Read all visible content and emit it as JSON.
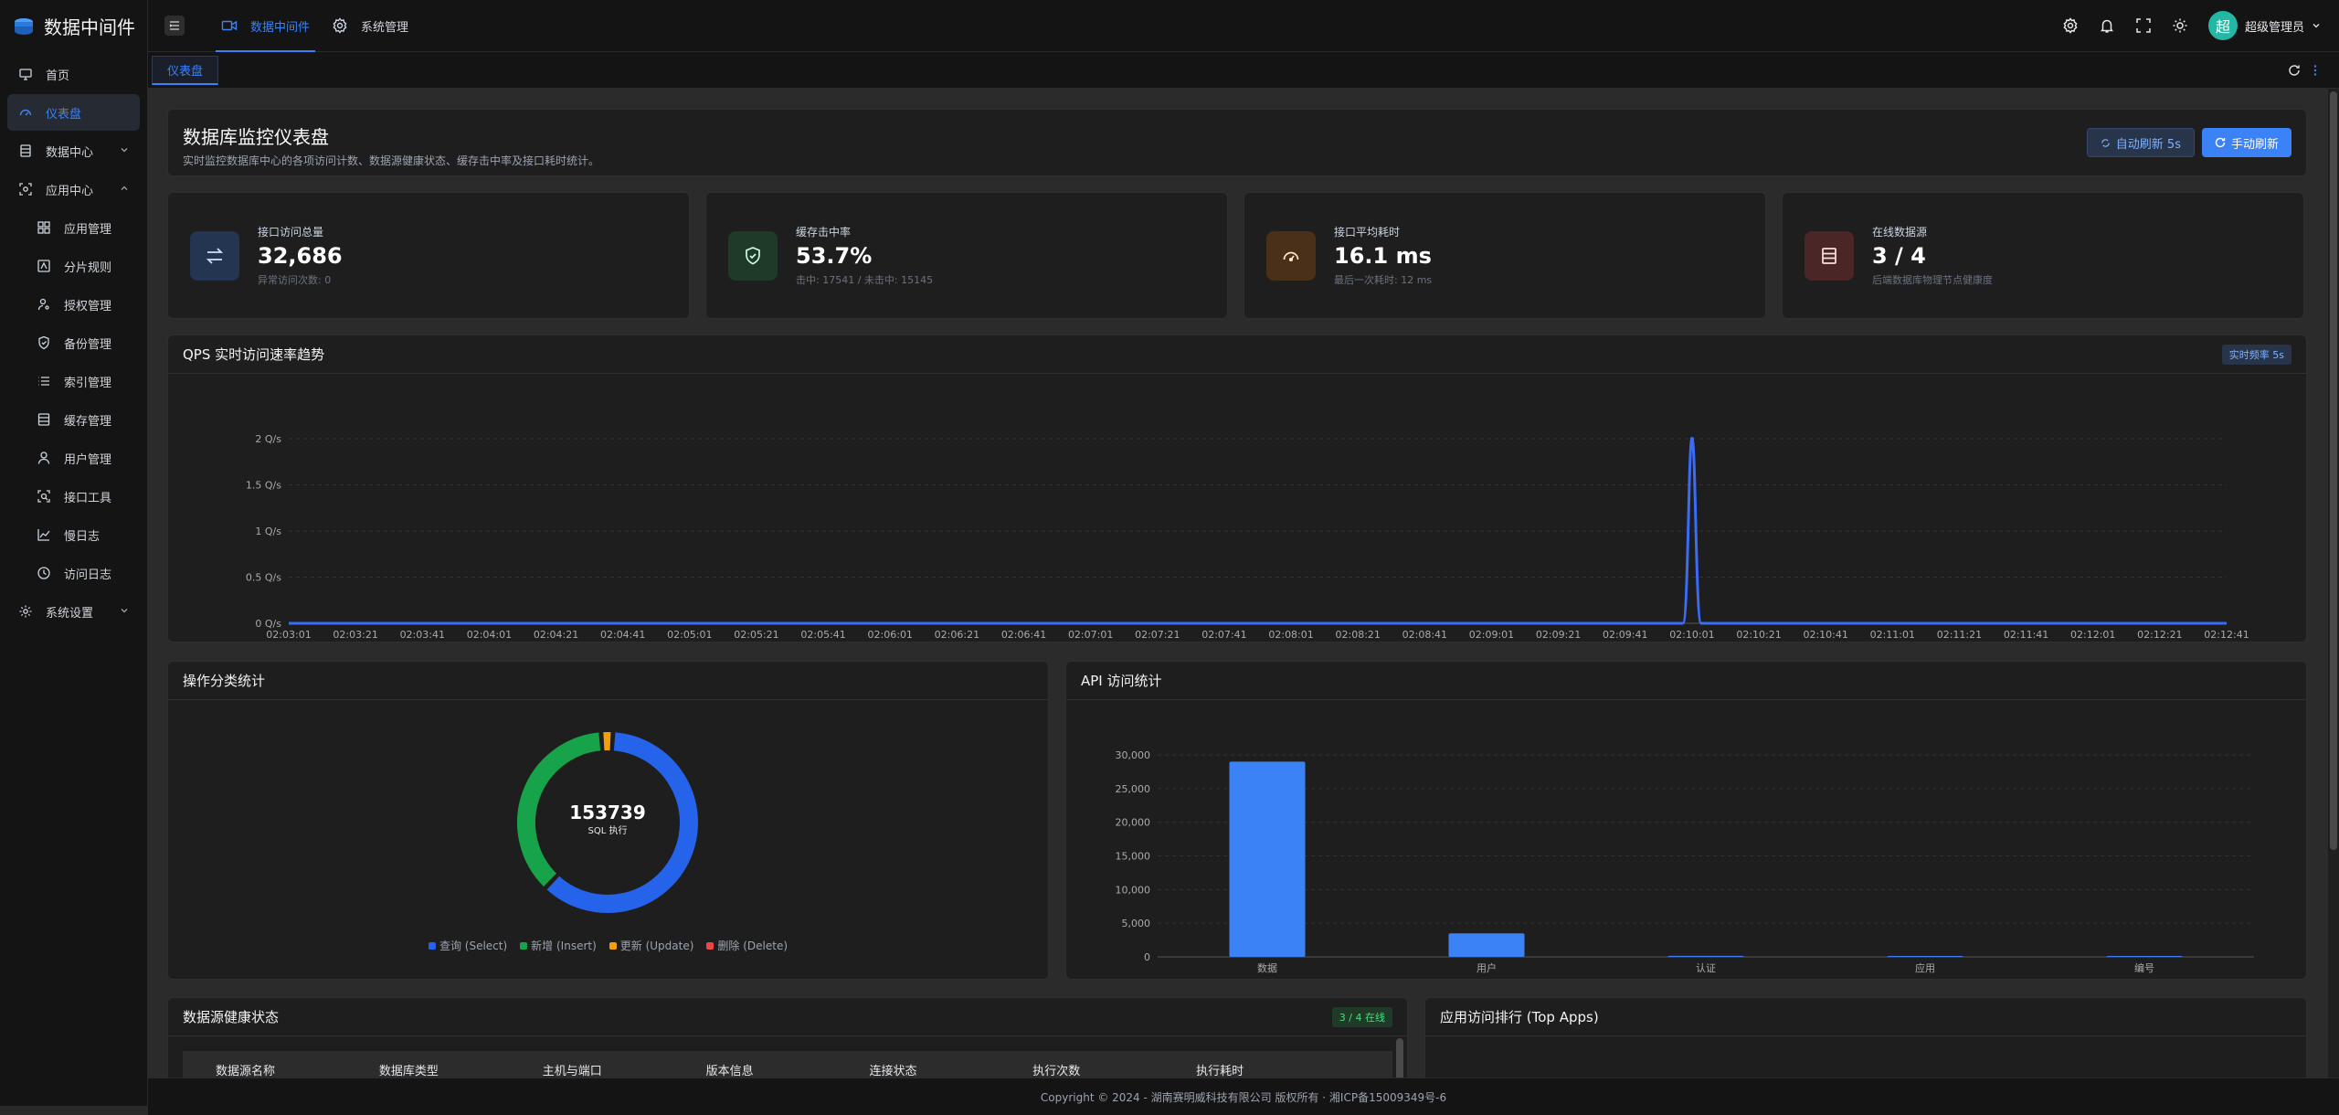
{
  "app": {
    "title": "数据中间件"
  },
  "sidebar": {
    "items": [
      {
        "label": "首页",
        "icon": "monitor-icon"
      },
      {
        "label": "仪表盘",
        "icon": "dashboard-icon",
        "active": true
      },
      {
        "label": "数据中心",
        "icon": "database-icon"
      },
      {
        "label": "应用中心",
        "icon": "app-center-icon"
      },
      {
        "label": "应用管理",
        "icon": "grid-icon"
      },
      {
        "label": "分片规则",
        "icon": "shard-icon"
      },
      {
        "label": "授权管理",
        "icon": "key-user-icon"
      },
      {
        "label": "备份管理",
        "icon": "shield-icon"
      },
      {
        "label": "索引管理",
        "icon": "list-icon"
      },
      {
        "label": "缓存管理",
        "icon": "cache-icon"
      },
      {
        "label": "用户管理",
        "icon": "user-icon"
      },
      {
        "label": "接口工具",
        "icon": "api-tool-icon"
      },
      {
        "label": "慢日志",
        "icon": "line-chart-icon"
      },
      {
        "label": "访问日志",
        "icon": "history-icon"
      },
      {
        "label": "系统设置",
        "icon": "gear-icon"
      }
    ]
  },
  "header": {
    "nav": [
      {
        "label": "数据中间件",
        "active": true
      },
      {
        "label": "系统管理"
      }
    ],
    "user": {
      "avatar": "超",
      "name": "超级管理员"
    }
  },
  "tabs": [
    {
      "label": "仪表盘"
    }
  ],
  "page": {
    "title": "数据库监控仪表盘",
    "subtitle": "实时监控数据库中心的各项访问计数、数据源健康状态、缓存击中率及接口耗时统计。",
    "auto_refresh": "自动刷新 5s",
    "manual_refresh": "手动刷新"
  },
  "stats": [
    {
      "label": "接口访问总量",
      "value": "32,686",
      "hint": "异常访问次数: 0",
      "color": "#3b82f6",
      "bg": "#1f2a44"
    },
    {
      "label": "缓存击中率",
      "value": "53.7%",
      "hint": "击中: 17541 / 未击中: 15145",
      "color": "#22c55e",
      "bg": "#1c3322"
    },
    {
      "label": "接口平均耗时",
      "value": "16.1 ms",
      "hint": "最后一次耗时: 12 ms",
      "color": "#f59e0b",
      "bg": "#3d2a18"
    },
    {
      "label": "在线数据源",
      "value": "3 / 4",
      "hint": "后端数据库物理节点健康度",
      "color": "#f87171",
      "bg": "#3d2222"
    }
  ],
  "qps": {
    "title": "QPS 实时访问速率趋势",
    "badge": "实时频率 5s"
  },
  "ops": {
    "title": "操作分类统计"
  },
  "api": {
    "title": "API 访问统计"
  },
  "health": {
    "title": "数据源健康状态",
    "badge": "3 / 4 在线"
  },
  "top_apps": {
    "title": "应用访问排行 (Top Apps)"
  },
  "footer": {
    "text": "Copyright © 2024 - 湖南赛明威科技有限公司 版权所有 · 湘ICP备15009349号-6"
  },
  "chart_data": [
    {
      "type": "line",
      "title": "QPS 实时访问速率趋势",
      "x": [
        "02:03:01",
        "02:03:21",
        "02:03:41",
        "02:04:01",
        "02:04:21",
        "02:04:41",
        "02:05:01",
        "02:05:21",
        "02:05:41",
        "02:06:01",
        "02:06:21",
        "02:06:41",
        "02:07:01",
        "02:07:21",
        "02:07:41",
        "02:08:01",
        "02:08:21",
        "02:08:41",
        "02:09:01",
        "02:09:21",
        "02:09:41",
        "02:10:01",
        "02:10:21",
        "02:10:41",
        "02:11:01",
        "02:11:21",
        "02:11:41",
        "02:12:01",
        "02:12:21",
        "02:12:41"
      ],
      "series": [
        {
          "values": [
            0,
            0,
            0,
            0,
            0,
            0,
            0,
            0,
            0,
            0,
            0,
            0,
            0,
            0,
            0,
            0,
            0,
            0,
            0,
            0,
            0,
            2,
            0,
            0,
            0,
            0,
            0,
            0,
            0,
            0
          ]
        }
      ],
      "yticks": [
        "0 Q/s",
        "0.5 Q/s",
        "1 Q/s",
        "1.5 Q/s",
        "2 Q/s"
      ],
      "ylim": [
        0,
        2
      ],
      "color": "#3b6cf6"
    },
    {
      "type": "pie",
      "title": "操作分类统计",
      "center_value": "153739",
      "center_label": "SQL 执行",
      "slices": [
        {
          "name": "查询 (Select)",
          "value": 94000,
          "color": "#2563eb"
        },
        {
          "name": "新增 (Insert)",
          "value": 56500,
          "color": "#16a34a"
        },
        {
          "name": "更新 (Update)",
          "value": 3239,
          "color": "#f59e0b"
        },
        {
          "name": "删除 (Delete)",
          "value": 0,
          "color": "#ef4444"
        }
      ]
    },
    {
      "type": "bar",
      "title": "API 访问统计",
      "categories": [
        "数据",
        "用户",
        "认证",
        "应用",
        "编号"
      ],
      "values": [
        29000,
        3500,
        150,
        30,
        10
      ],
      "yticks": [
        "0",
        "5,000",
        "10,000",
        "15,000",
        "20,000",
        "25,000",
        "30,000"
      ],
      "ylim": [
        0,
        30000
      ],
      "color": "#3b82f6"
    }
  ],
  "table": {
    "columns": [
      "数据源名称",
      "数据库类型",
      "主机与端口",
      "版本信息",
      "连接状态",
      "执行次数",
      "执行耗时"
    ]
  }
}
